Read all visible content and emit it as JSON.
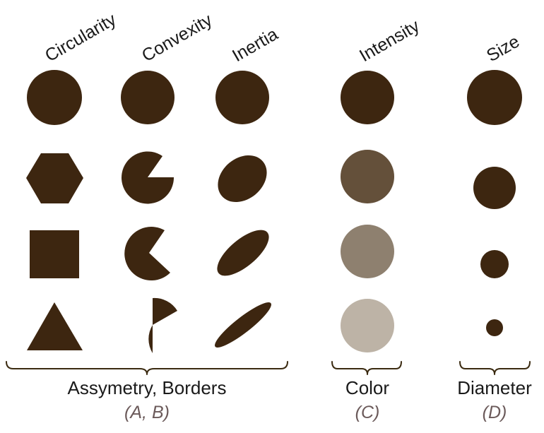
{
  "headers": {
    "circularity": "Circularity",
    "convexity": "Convexity",
    "inertia": "Inertia",
    "intensity": "Intensity",
    "size": "Size"
  },
  "groups": {
    "asymmetry": {
      "label": "Assymetry, Borders",
      "sub": "(A, B)"
    },
    "color": {
      "label": "Color",
      "sub": "(C)"
    },
    "diameter": {
      "label": "Diameter",
      "sub": "(D)"
    }
  },
  "colors": {
    "shape": "#3d2610",
    "intensity_levels": [
      "#3d2610",
      "#64503a",
      "#8e806f",
      "#bdb3a6"
    ],
    "sublabel": "#6b5a5a",
    "brace": "#3a2a10"
  }
}
